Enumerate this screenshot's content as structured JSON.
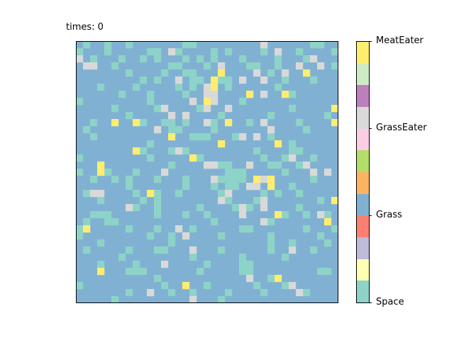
{
  "title": "times: 0",
  "grid": {
    "rows": 37,
    "cols": 37,
    "background_state": "Grass",
    "states": {
      "Space": "#8dd3c7",
      "Grass": "#80b1d3",
      "GrassEater": "#d9d9d9",
      "MeatEater": "#ffed6f"
    },
    "cells": {
      "Space": [
        [
          0,
          1
        ],
        [
          0,
          4
        ],
        [
          0,
          7
        ],
        [
          0,
          15
        ],
        [
          0,
          16
        ],
        [
          0,
          26
        ],
        [
          0,
          33
        ],
        [
          0,
          34
        ],
        [
          1,
          0
        ],
        [
          1,
          4
        ],
        [
          1,
          10
        ],
        [
          1,
          11
        ],
        [
          1,
          14
        ],
        [
          1,
          19
        ],
        [
          1,
          21
        ],
        [
          1,
          26
        ],
        [
          1,
          31
        ],
        [
          1,
          36
        ],
        [
          2,
          2
        ],
        [
          2,
          6
        ],
        [
          2,
          9
        ],
        [
          2,
          11
        ],
        [
          2,
          15
        ],
        [
          2,
          17
        ],
        [
          2,
          19
        ],
        [
          2,
          23
        ],
        [
          2,
          28
        ],
        [
          2,
          32
        ],
        [
          3,
          5
        ],
        [
          3,
          13
        ],
        [
          3,
          14
        ],
        [
          3,
          18
        ],
        [
          3,
          24
        ],
        [
          3,
          25
        ],
        [
          3,
          28
        ],
        [
          3,
          36
        ],
        [
          4,
          7
        ],
        [
          4,
          12
        ],
        [
          4,
          15
        ],
        [
          4,
          16
        ],
        [
          4,
          27
        ],
        [
          4,
          29
        ],
        [
          5,
          9
        ],
        [
          5,
          11
        ],
        [
          5,
          16
        ],
        [
          5,
          17
        ],
        [
          5,
          20
        ],
        [
          5,
          21
        ],
        [
          5,
          29
        ],
        [
          5,
          33
        ],
        [
          6,
          3
        ],
        [
          6,
          8
        ],
        [
          6,
          14
        ],
        [
          6,
          16
        ],
        [
          6,
          21
        ],
        [
          6,
          28
        ],
        [
          7,
          6
        ],
        [
          7,
          10
        ],
        [
          7,
          15
        ],
        [
          7,
          24
        ],
        [
          7,
          30
        ],
        [
          8,
          0
        ],
        [
          8,
          10
        ],
        [
          8,
          16
        ],
        [
          8,
          23
        ],
        [
          9,
          5
        ],
        [
          9,
          11
        ],
        [
          9,
          17
        ],
        [
          9,
          30
        ],
        [
          10,
          7
        ],
        [
          10,
          13
        ],
        [
          10,
          20
        ],
        [
          10,
          27
        ],
        [
          10,
          35
        ],
        [
          11,
          2
        ],
        [
          11,
          5
        ],
        [
          11,
          9
        ],
        [
          11,
          12
        ],
        [
          11,
          13
        ],
        [
          11,
          15
        ],
        [
          11,
          18
        ],
        [
          11,
          19
        ],
        [
          11,
          24
        ],
        [
          11,
          31
        ],
        [
          12,
          1
        ],
        [
          12,
          13
        ],
        [
          12,
          14
        ],
        [
          12,
          19
        ],
        [
          12,
          32
        ],
        [
          13,
          2
        ],
        [
          13,
          16
        ],
        [
          13,
          17
        ],
        [
          13,
          18
        ],
        [
          13,
          22
        ],
        [
          13,
          27
        ],
        [
          14,
          10
        ],
        [
          14,
          20
        ],
        [
          14,
          30
        ],
        [
          15,
          9
        ],
        [
          15,
          13
        ],
        [
          15,
          14
        ],
        [
          15,
          15
        ],
        [
          15,
          25
        ],
        [
          15,
          30
        ],
        [
          15,
          31
        ],
        [
          16,
          0
        ],
        [
          16,
          10
        ],
        [
          16,
          17
        ],
        [
          16,
          26
        ],
        [
          16,
          29
        ],
        [
          16,
          30
        ],
        [
          16,
          33
        ],
        [
          17,
          3
        ],
        [
          17,
          13
        ],
        [
          17,
          18
        ],
        [
          17,
          20
        ],
        [
          17,
          21
        ],
        [
          17,
          27
        ],
        [
          17,
          28
        ],
        [
          17,
          31
        ],
        [
          18,
          0
        ],
        [
          18,
          4
        ],
        [
          18,
          8
        ],
        [
          18,
          12
        ],
        [
          18,
          21
        ],
        [
          18,
          22
        ],
        [
          18,
          23
        ],
        [
          18,
          29
        ],
        [
          19,
          2
        ],
        [
          19,
          5
        ],
        [
          19,
          7
        ],
        [
          19,
          11
        ],
        [
          19,
          15
        ],
        [
          19,
          20
        ],
        [
          19,
          21
        ],
        [
          19,
          22
        ],
        [
          19,
          23
        ],
        [
          19,
          26
        ],
        [
          19,
          33
        ],
        [
          20,
          7
        ],
        [
          20,
          15
        ],
        [
          20,
          19
        ],
        [
          20,
          21
        ],
        [
          20,
          22
        ],
        [
          20,
          24
        ],
        [
          20,
          30
        ],
        [
          21,
          1
        ],
        [
          21,
          8
        ],
        [
          21,
          11
        ],
        [
          21,
          14
        ],
        [
          21,
          20
        ],
        [
          21,
          26
        ],
        [
          21,
          28
        ],
        [
          21,
          31
        ],
        [
          22,
          3
        ],
        [
          22,
          9
        ],
        [
          22,
          11
        ],
        [
          22,
          21
        ],
        [
          22,
          25
        ],
        [
          22,
          34
        ],
        [
          23,
          8
        ],
        [
          23,
          11
        ],
        [
          23,
          17
        ],
        [
          23,
          22
        ],
        [
          23,
          24
        ],
        [
          23,
          31
        ],
        [
          24,
          2
        ],
        [
          24,
          3
        ],
        [
          24,
          4
        ],
        [
          24,
          11
        ],
        [
          24,
          15
        ],
        [
          24,
          18
        ],
        [
          24,
          29
        ],
        [
          24,
          32
        ],
        [
          24,
          35
        ],
        [
          25,
          1
        ],
        [
          25,
          4
        ],
        [
          25,
          5
        ],
        [
          25,
          19
        ],
        [
          25,
          27
        ],
        [
          26,
          0
        ],
        [
          26,
          7
        ],
        [
          26,
          11
        ],
        [
          26,
          16
        ],
        [
          26,
          23
        ],
        [
          26,
          24
        ],
        [
          26,
          32
        ],
        [
          26,
          36
        ],
        [
          27,
          0
        ],
        [
          27,
          10
        ],
        [
          27,
          13
        ],
        [
          27,
          20
        ],
        [
          27,
          27
        ],
        [
          27,
          34
        ],
        [
          28,
          3
        ],
        [
          28,
          13
        ],
        [
          28,
          27
        ],
        [
          28,
          30
        ],
        [
          28,
          35
        ],
        [
          29,
          1
        ],
        [
          29,
          7
        ],
        [
          29,
          11
        ],
        [
          29,
          12
        ],
        [
          29,
          20
        ],
        [
          29,
          27
        ],
        [
          29,
          33
        ],
        [
          30,
          6
        ],
        [
          30,
          16
        ],
        [
          30,
          23
        ],
        [
          30,
          29
        ],
        [
          31,
          3
        ],
        [
          31,
          8
        ],
        [
          31,
          18
        ],
        [
          31,
          23
        ],
        [
          31,
          24
        ],
        [
          32,
          7
        ],
        [
          32,
          8
        ],
        [
          32,
          9
        ],
        [
          32,
          17
        ],
        [
          32,
          23
        ],
        [
          32,
          24
        ],
        [
          32,
          34
        ],
        [
          32,
          35
        ],
        [
          33,
          11
        ],
        [
          33,
          27
        ],
        [
          34,
          0
        ],
        [
          34,
          12
        ],
        [
          34,
          18
        ],
        [
          34,
          25
        ],
        [
          34,
          29
        ],
        [
          35,
          7
        ],
        [
          35,
          10
        ],
        [
          35,
          13
        ],
        [
          35,
          16
        ],
        [
          35,
          21
        ],
        [
          35,
          26
        ],
        [
          35,
          32
        ],
        [
          36,
          5
        ],
        [
          36,
          20
        ]
      ],
      "GrassEater": [
        [
          0,
          26
        ],
        [
          1,
          13
        ],
        [
          1,
          28
        ],
        [
          2,
          0
        ],
        [
          2,
          33
        ],
        [
          3,
          1
        ],
        [
          3,
          2
        ],
        [
          3,
          20
        ],
        [
          3,
          31
        ],
        [
          3,
          34
        ],
        [
          4,
          25
        ],
        [
          4,
          29
        ],
        [
          5,
          14
        ],
        [
          5,
          23
        ],
        [
          5,
          26
        ],
        [
          6,
          18
        ],
        [
          7,
          18
        ],
        [
          7,
          19
        ],
        [
          7,
          24
        ],
        [
          7,
          26
        ],
        [
          8,
          16
        ],
        [
          8,
          19
        ],
        [
          9,
          12
        ],
        [
          9,
          18
        ],
        [
          9,
          21
        ],
        [
          10,
          13
        ],
        [
          10,
          15
        ],
        [
          11,
          18
        ],
        [
          11,
          26
        ],
        [
          12,
          11
        ],
        [
          12,
          27
        ],
        [
          13,
          23
        ],
        [
          13,
          25
        ],
        [
          15,
          14
        ],
        [
          16,
          30
        ],
        [
          17,
          18
        ],
        [
          17,
          19
        ],
        [
          17,
          24
        ],
        [
          17,
          32
        ],
        [
          18,
          3
        ],
        [
          18,
          12
        ],
        [
          18,
          33
        ],
        [
          18,
          35
        ],
        [
          19,
          19
        ],
        [
          19,
          26
        ],
        [
          20,
          24
        ],
        [
          20,
          25
        ],
        [
          21,
          2
        ],
        [
          21,
          3
        ],
        [
          21,
          21
        ],
        [
          22,
          20
        ],
        [
          22,
          26
        ],
        [
          23,
          7
        ],
        [
          23,
          23
        ],
        [
          23,
          26
        ],
        [
          24,
          23
        ],
        [
          24,
          34
        ],
        [
          25,
          26
        ],
        [
          26,
          1
        ],
        [
          26,
          14
        ],
        [
          27,
          15
        ],
        [
          29,
          16
        ],
        [
          29,
          30
        ],
        [
          31,
          12
        ],
        [
          32,
          3
        ],
        [
          33,
          24
        ],
        [
          34,
          30
        ],
        [
          35,
          10
        ],
        [
          35,
          31
        ],
        [
          36,
          16
        ]
      ],
      "MeatEater": [
        [
          4,
          20
        ],
        [
          4,
          32
        ],
        [
          5,
          19
        ],
        [
          6,
          19
        ],
        [
          7,
          24
        ],
        [
          7,
          29
        ],
        [
          8,
          18
        ],
        [
          9,
          36
        ],
        [
          11,
          5
        ],
        [
          11,
          8
        ],
        [
          11,
          21
        ],
        [
          11,
          36
        ],
        [
          13,
          13
        ],
        [
          14,
          20
        ],
        [
          14,
          28
        ],
        [
          15,
          8
        ],
        [
          16,
          16
        ],
        [
          17,
          3
        ],
        [
          18,
          3
        ],
        [
          19,
          25
        ],
        [
          19,
          27
        ],
        [
          20,
          27
        ],
        [
          21,
          10
        ],
        [
          22,
          36
        ],
        [
          24,
          28
        ],
        [
          25,
          35
        ],
        [
          26,
          1
        ],
        [
          32,
          3
        ],
        [
          33,
          28
        ],
        [
          34,
          15
        ]
      ]
    }
  },
  "colorbar": {
    "segments": [
      "#8dd3c7",
      "#ffffb3",
      "#bebada",
      "#fb8072",
      "#80b1d3",
      "#fdb462",
      "#b3de69",
      "#fccde5",
      "#d9d9d9",
      "#bc80bd",
      "#ccebc5",
      "#ffed6f"
    ],
    "labels": [
      "Space",
      "Grass",
      "GrassEater",
      "MeatEater"
    ],
    "label_values": [
      0,
      1,
      2,
      3
    ],
    "range": [
      0,
      3
    ]
  }
}
